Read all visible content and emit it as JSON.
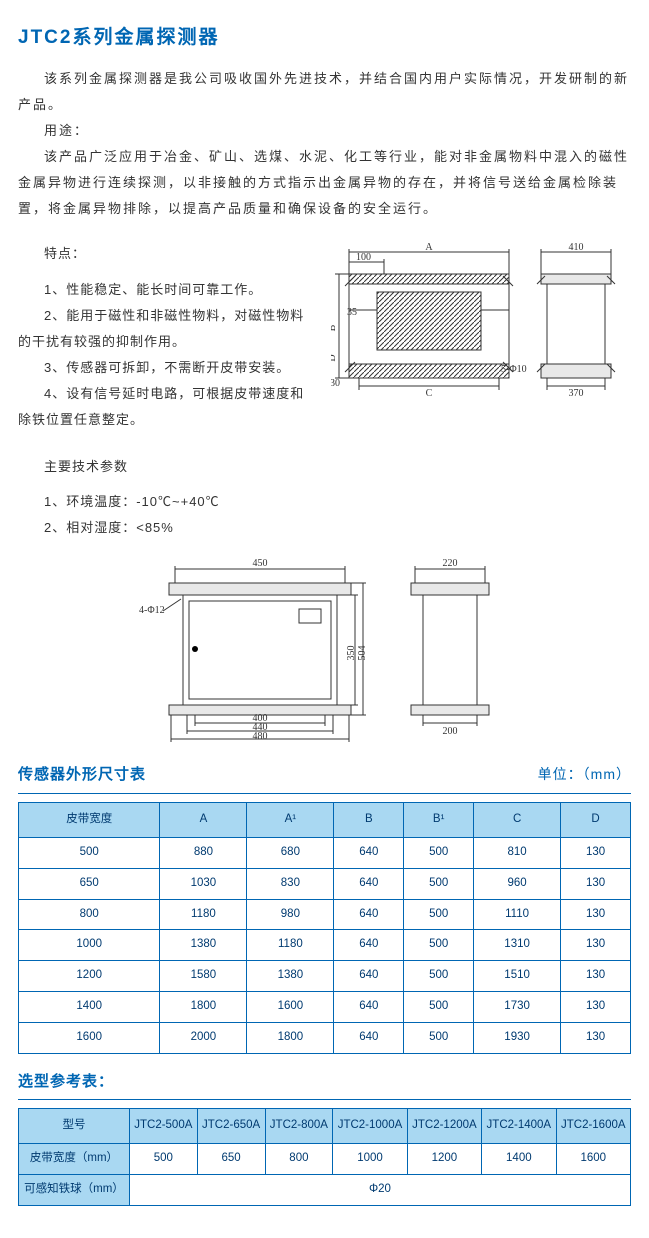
{
  "title": "JTC2系列金属探测器",
  "intro": {
    "p1": "该系列金属探测器是我公司吸收国外先进技术，并结合国内用户实际情况，开发研制的新产品。",
    "use_label": "用途：",
    "p2": "该产品广泛应用于冶金、矿山、选煤、水泥、化工等行业，能对非金属物料中混入的磁性金属异物进行连续探测，以非接触的方式指示出金属异物的存在，并将信号送给金属检除装置，将金属异物排除，以提高产品质量和确保设备的安全运行。"
  },
  "features": {
    "label": "特点：",
    "items": [
      "1、性能稳定、能长时间可靠工作。",
      "2、能用于磁性和非磁性物料，对磁性物料的干扰有较强的抑制作用。",
      "3、传感器可拆卸，不需断开皮带安装。",
      "4、设有信号延时电路，可根据皮带速度和除铁位置任意整定。"
    ]
  },
  "specs": {
    "label": "主要技术参数",
    "items": [
      "1、环境温度：-10℃~+40℃",
      "2、相对湿度：<85%"
    ]
  },
  "diagram1": {
    "labels": {
      "A": "A",
      "n100": "100",
      "B": "B",
      "n35": "35",
      "D": "D",
      "n30": "30",
      "C": "C",
      "hole": "5-Φ10",
      "n410": "410",
      "n370": "370"
    }
  },
  "diagram2": {
    "labels": {
      "n450": "450",
      "hole": "4-Φ12",
      "n400": "400",
      "n440": "440",
      "n480": "480",
      "n350": "350",
      "n504": "504",
      "n220": "220",
      "n200": "200"
    }
  },
  "table1": {
    "title": "传感器外形尺寸表",
    "unit": "单位：（mm）",
    "columns": [
      "皮带宽度",
      "A",
      "A¹",
      "B",
      "B¹",
      "C",
      "D"
    ],
    "rows": [
      [
        "500",
        "880",
        "680",
        "640",
        "500",
        "810",
        "130"
      ],
      [
        "650",
        "1030",
        "830",
        "640",
        "500",
        "960",
        "130"
      ],
      [
        "800",
        "1180",
        "980",
        "640",
        "500",
        "1110",
        "130"
      ],
      [
        "1000",
        "1380",
        "1180",
        "640",
        "500",
        "1310",
        "130"
      ],
      [
        "1200",
        "1580",
        "1380",
        "640",
        "500",
        "1510",
        "130"
      ],
      [
        "1400",
        "1800",
        "1600",
        "640",
        "500",
        "1730",
        "130"
      ],
      [
        "1600",
        "2000",
        "1800",
        "640",
        "500",
        "1930",
        "130"
      ]
    ]
  },
  "table2": {
    "title": "选型参考表：",
    "columns": [
      "型号",
      "JTC2-500A",
      "JTC2-650A",
      "JTC2-800A",
      "JTC2-1000A",
      "JTC2-1200A",
      "JTC2-1400A",
      "JTC2-1600A"
    ],
    "rows": [
      [
        "皮带宽度（mm）",
        "500",
        "650",
        "800",
        "1000",
        "1200",
        "1400",
        "1600"
      ],
      [
        "可感知铁球（mm）",
        "Φ20"
      ]
    ]
  }
}
